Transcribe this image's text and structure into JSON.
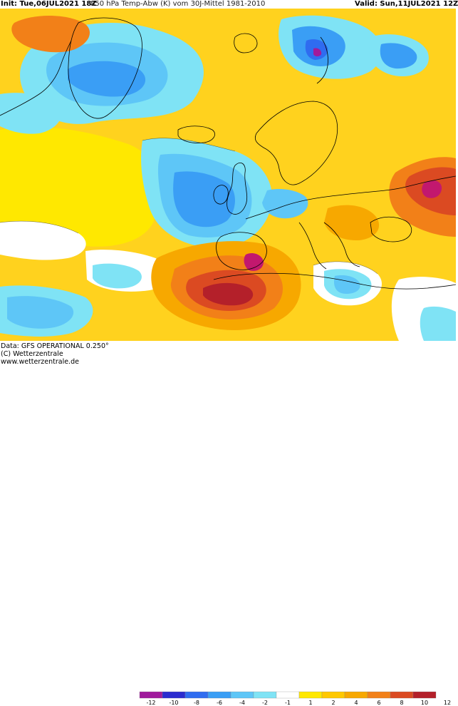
{
  "header": {
    "init": "Init: Tue,06JUL2021 18Z",
    "title": "850 hPa Temp-Abw (K) vom 30J-Mittel 1981-2010",
    "valid": "Valid: Sun,11JUL2021 12Z"
  },
  "footer": {
    "line1": "Data: GFS OPERATIONAL 0.250°",
    "line2": "(C) Wetterzentrale",
    "line3": "www.wetterzentrale.de"
  },
  "legend": {
    "ticks": [
      "-12",
      "-10",
      "-8",
      "-6",
      "-4",
      "-2",
      "-1",
      "1",
      "2",
      "4",
      "6",
      "8",
      "10",
      "12"
    ],
    "colors": [
      "#a01a9c",
      "#2b2ccf",
      "#2f6cf0",
      "#3a9ef5",
      "#5ec6f7",
      "#7fe3f5",
      "#ffffff",
      "#ffe800",
      "#ffc800",
      "#f7a800",
      "#f28018",
      "#db4a22",
      "#b4202a"
    ]
  },
  "map": {
    "colors": {
      "ocean": "#ffd21e",
      "land": "#ffdd2a",
      "cold_light": "#7fe3f5",
      "cold_mid": "#5ec6f7",
      "cold_deep": "#3a9ef5",
      "cold_core": "#2f6cf0",
      "very_cold": "#a01a9c",
      "neutral": "#ffffff",
      "warm_light": "#ffe800",
      "warm_mid": "#f7a800",
      "warm_orange": "#f28018",
      "warm_red": "#db4a22",
      "warm_deep": "#b4202a",
      "warm_extreme": "#c2186e",
      "coast": "#000000"
    }
  }
}
